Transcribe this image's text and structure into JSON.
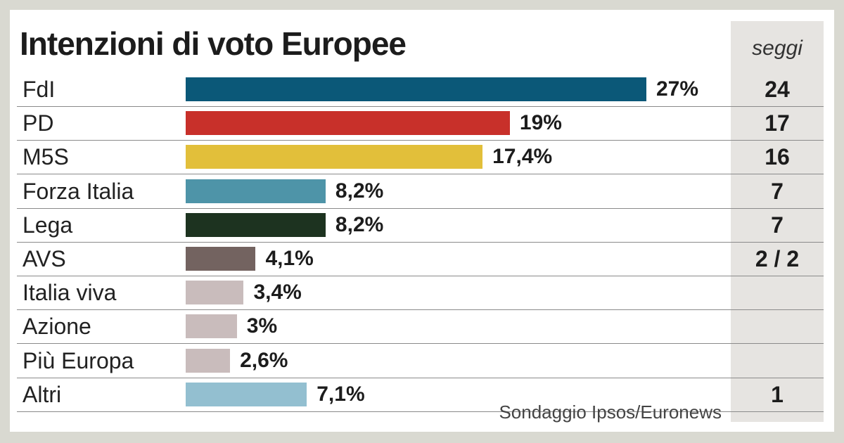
{
  "chart_data": {
    "type": "bar",
    "orientation": "horizontal",
    "title": "Intenzioni di voto Europee",
    "categories": [
      "FdI",
      "PD",
      "M5S",
      "Forza Italia",
      "Lega",
      "AVS",
      "Italia viva",
      "Azione",
      "Più Europa",
      "Altri"
    ],
    "values": [
      27,
      19,
      17.4,
      8.2,
      8.2,
      4.1,
      3.4,
      3,
      2.6,
      7.1
    ],
    "value_labels": [
      "27%",
      "19%",
      "17,4%",
      "8,2%",
      "8,2%",
      "4,1%",
      "3,4%",
      "3%",
      "2,6%",
      "7,1%"
    ],
    "colors": [
      "#0b5878",
      "#c8302a",
      "#e2bf3a",
      "#4e94a8",
      "#1d3320",
      "#736360",
      "#c9bcbc",
      "#c9bcbc",
      "#c9bcbc",
      "#93bfd0"
    ],
    "seats_header": "seggi",
    "seats": [
      "24",
      "17",
      "16",
      "7",
      "7",
      "2 / 2",
      "",
      "",
      "",
      "1"
    ],
    "xlim": [
      0,
      27
    ],
    "xlabel": "",
    "ylabel": ""
  },
  "source": "Sondaggio Ipsos/Euronews"
}
